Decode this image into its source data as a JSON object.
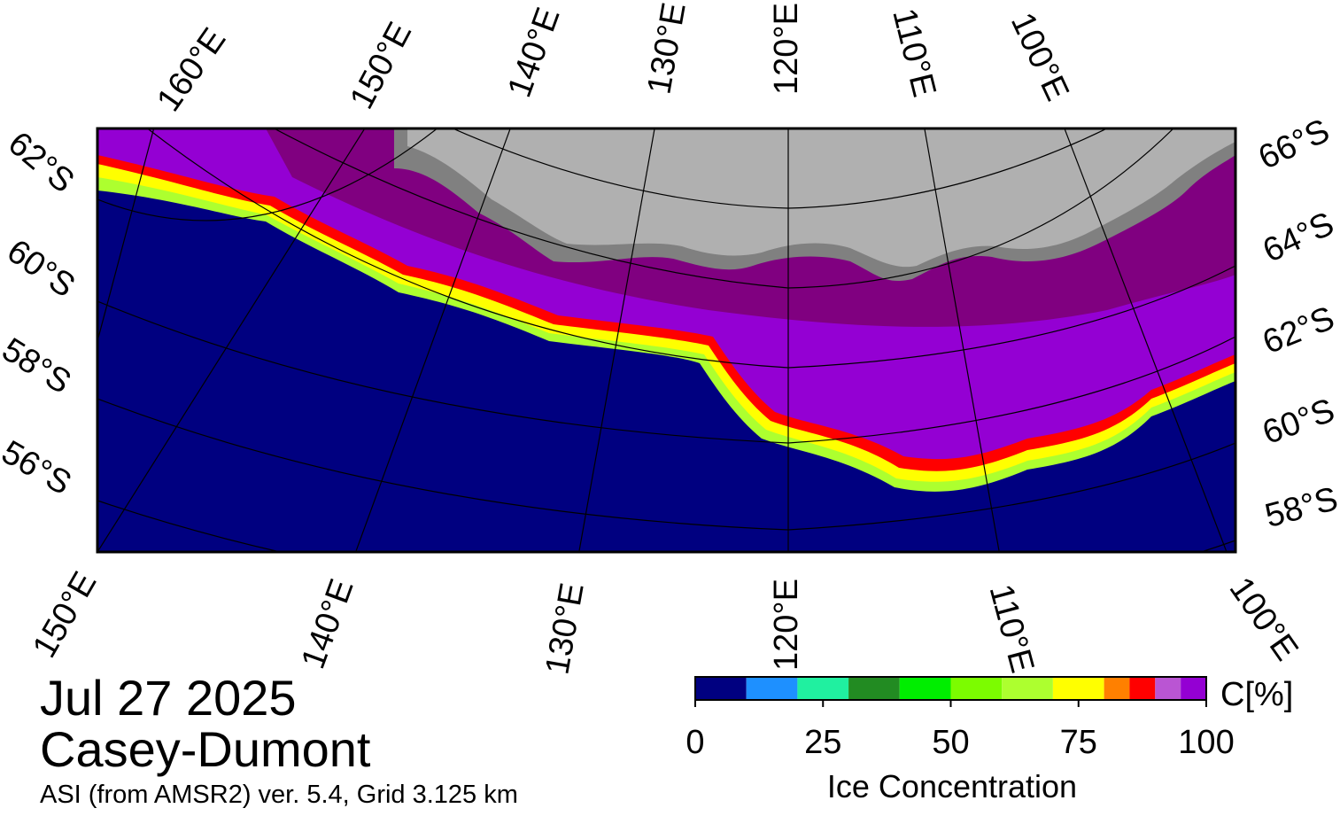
{
  "title": "Jul 27 2025",
  "region": "Casey-Dumont",
  "subtitle": "ASI (from AMSR2) ver. 5.4,  Grid 3.125 km",
  "graticule": {
    "top": [
      "160°E",
      "150°E",
      "140°E",
      "130°E",
      "120°E",
      "110°E",
      "100°E"
    ],
    "bottom": [
      "150°E",
      "140°E",
      "130°E",
      "120°E",
      "110°E",
      "100°E"
    ],
    "left": [
      "62°S",
      "60°S",
      "58°S",
      "56°S"
    ],
    "right": [
      "66°S",
      "64°S",
      "62°S",
      "60°S",
      "58°S"
    ]
  },
  "colorbar": {
    "label": "Ice Concentration",
    "unit": "C[%]",
    "lim": [
      0,
      100
    ],
    "bounds": [
      0,
      10,
      20,
      30,
      40,
      50,
      60,
      70,
      80,
      85,
      90,
      95,
      100
    ],
    "colors": [
      "#000080",
      "#1e90ff",
      "#20f0a0",
      "#228b22",
      "#00ee00",
      "#7cfc00",
      "#adff2f",
      "#ffff00",
      "#ff8000",
      "#ff0000",
      "#ba55d3",
      "#9400d3"
    ],
    "ticks": [
      0,
      25,
      50,
      75,
      100
    ]
  }
}
